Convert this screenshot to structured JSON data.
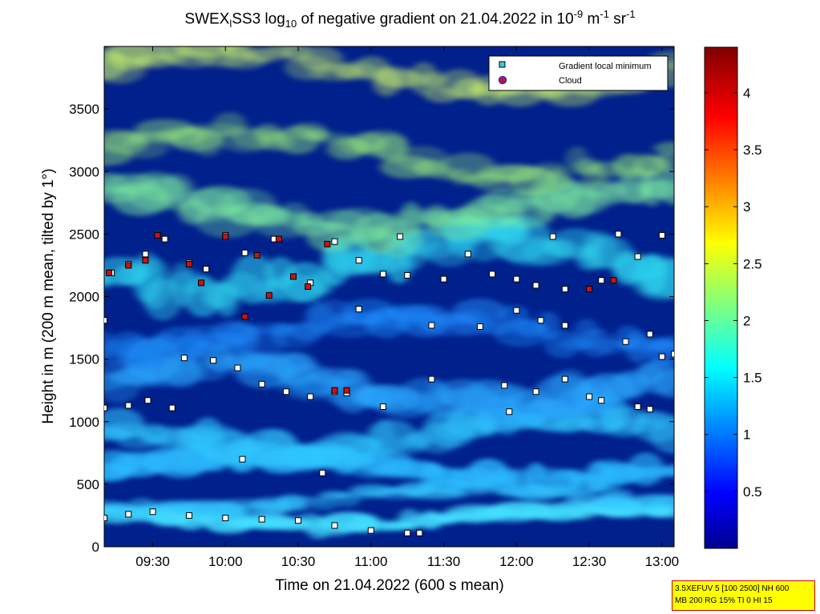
{
  "title": {
    "prefix": "SWEX",
    "prefix_sub": "l",
    "main": "SS3 log",
    "main_sub": "10",
    "rest": " of negative gradient on 21.04.2022 in 10",
    "exp1": "-9",
    "unit1": " m",
    "exp2": "-1",
    "unit2": " sr",
    "exp3": "-1"
  },
  "info_box": {
    "line1": "3.5XEFUV 5 [100 2500] NH 600",
    "line2": "MB 200 RG 15% TI 0 HI 15"
  },
  "colors": {
    "gradient_marker_face": "#3cc8e6",
    "cloud_marker_face": "#cc1111",
    "background_field": "#00208c"
  },
  "chart_data": {
    "type": "heatmap",
    "xlabel": "Time on 21.04.2022 (600 s mean)",
    "ylabel": "Height in m (200 m mean, tilted by 1°)",
    "x_range": [
      "09:10",
      "13:05"
    ],
    "ylim": [
      0,
      4000
    ],
    "x_ticks": [
      "09:30",
      "10:00",
      "10:30",
      "11:00",
      "11:30",
      "12:00",
      "12:30",
      "13:00"
    ],
    "y_ticks": [
      0,
      500,
      1000,
      1500,
      2000,
      2500,
      3000,
      3500
    ],
    "colorbar": {
      "range": [
        0,
        4.4
      ],
      "ticks": [
        0.5,
        1,
        1.5,
        2,
        2.5,
        3,
        3.5,
        4
      ],
      "colormap": "jet"
    },
    "legend": {
      "position": "top-right",
      "entries": [
        "Gradient local minimum",
        "Cloud"
      ]
    },
    "series": [
      {
        "name": "Gradient local minimum",
        "points": [
          [
            "09:10",
            230
          ],
          [
            "09:20",
            260
          ],
          [
            "09:30",
            280
          ],
          [
            "09:45",
            250
          ],
          [
            "10:00",
            230
          ],
          [
            "10:15",
            220
          ],
          [
            "10:30",
            210
          ],
          [
            "10:45",
            170
          ],
          [
            "11:00",
            130
          ],
          [
            "11:15",
            110
          ],
          [
            "11:20",
            110
          ],
          [
            "09:10",
            1110
          ],
          [
            "09:20",
            1130
          ],
          [
            "09:28",
            1170
          ],
          [
            "09:38",
            1110
          ],
          [
            "09:43",
            1510
          ],
          [
            "09:55",
            1490
          ],
          [
            "10:05",
            1430
          ],
          [
            "10:15",
            1300
          ],
          [
            "10:25",
            1240
          ],
          [
            "10:35",
            1200
          ],
          [
            "10:45",
            1240
          ],
          [
            "10:50",
            1230
          ],
          [
            "09:10",
            1810
          ],
          [
            "09:13",
            2190
          ],
          [
            "09:20",
            2260
          ],
          [
            "09:27",
            2340
          ],
          [
            "09:35",
            2460
          ],
          [
            "09:45",
            2270
          ],
          [
            "09:52",
            2220
          ],
          [
            "10:00",
            2490
          ],
          [
            "10:08",
            2350
          ],
          [
            "10:20",
            2460
          ],
          [
            "10:35",
            2110
          ],
          [
            "10:45",
            2440
          ],
          [
            "10:55",
            2290
          ],
          [
            "11:05",
            2180
          ],
          [
            "11:12",
            2480
          ],
          [
            "11:15",
            2170
          ],
          [
            "11:30",
            2140
          ],
          [
            "11:40",
            2340
          ],
          [
            "11:50",
            2180
          ],
          [
            "12:00",
            2140
          ],
          [
            "12:08",
            2090
          ],
          [
            "12:15",
            2480
          ],
          [
            "12:20",
            2060
          ],
          [
            "12:35",
            2130
          ],
          [
            "12:42",
            2500
          ],
          [
            "12:50",
            2320
          ],
          [
            "13:00",
            2490
          ],
          [
            "10:55",
            1900
          ],
          [
            "11:25",
            1770
          ],
          [
            "11:45",
            1760
          ],
          [
            "12:00",
            1890
          ],
          [
            "12:10",
            1810
          ],
          [
            "12:20",
            1770
          ],
          [
            "12:45",
            1640
          ],
          [
            "12:55",
            1700
          ],
          [
            "13:00",
            1520
          ],
          [
            "13:05",
            1540
          ],
          [
            "10:40",
            590
          ],
          [
            "10:07",
            700
          ],
          [
            "11:05",
            1120
          ],
          [
            "11:25",
            1340
          ],
          [
            "11:55",
            1290
          ],
          [
            "11:57",
            1080
          ],
          [
            "12:08",
            1240
          ],
          [
            "12:20",
            1340
          ],
          [
            "12:30",
            1200
          ],
          [
            "12:35",
            1170
          ],
          [
            "12:50",
            1120
          ],
          [
            "12:55",
            1100
          ]
        ]
      },
      {
        "name": "Cloud",
        "points": [
          [
            "09:12",
            2190
          ],
          [
            "09:20",
            2250
          ],
          [
            "09:27",
            2290
          ],
          [
            "09:32",
            2490
          ],
          [
            "09:45",
            2260
          ],
          [
            "09:50",
            2110
          ],
          [
            "10:00",
            2480
          ],
          [
            "10:08",
            1840
          ],
          [
            "10:13",
            2330
          ],
          [
            "10:18",
            2010
          ],
          [
            "10:22",
            2460
          ],
          [
            "10:28",
            2160
          ],
          [
            "10:34",
            2080
          ],
          [
            "10:42",
            2420
          ],
          [
            "10:45",
            1250
          ],
          [
            "10:50",
            1250
          ],
          [
            "12:30",
            2060
          ],
          [
            "12:40",
            2130
          ]
        ]
      }
    ]
  }
}
